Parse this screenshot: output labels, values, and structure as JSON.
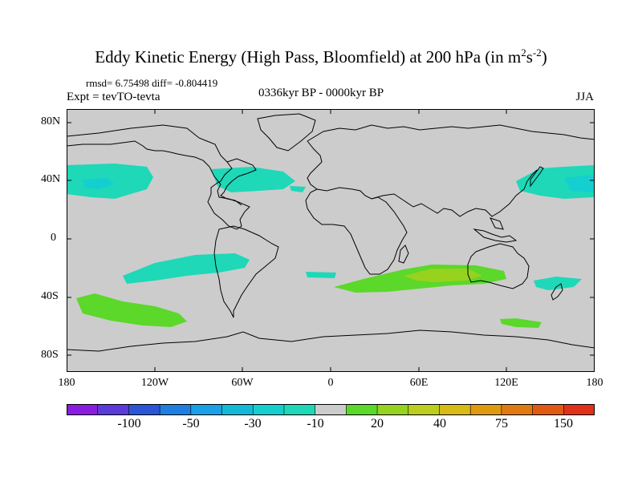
{
  "title": {
    "main": "Eddy Kinetic Energy (High Pass, Bloomfield) at 200 hPa (in m",
    "sup1": "2",
    "mid": "s",
    "sup2": "-2",
    "close": ")"
  },
  "stats": "rmsd= 6.75498 diff= -0.804419",
  "experiment": "Expt = tevTO-tevta",
  "period": "0336kyr BP - 0000kyr BP",
  "season": "JJA",
  "lat_ticks": [
    "80N",
    "40N",
    "0",
    "40S",
    "80S"
  ],
  "lon_ticks": [
    "180",
    "120W",
    "60W",
    "0",
    "60E",
    "120E",
    "180"
  ],
  "colorbar": {
    "labels": [
      "-100",
      "-50",
      "-30",
      "-10",
      "20",
      "40",
      "75",
      "150"
    ],
    "colors": [
      "#8a1ce0",
      "#5a3ad8",
      "#2a55d6",
      "#1e7fe0",
      "#1aa0e6",
      "#12bad8",
      "#14cfcf",
      "#1ed8b8",
      "#cccccc",
      "#5bd82a",
      "#96d21e",
      "#bccd1e",
      "#d8bb14",
      "#e09a10",
      "#e07a10",
      "#e05a14",
      "#e0321a"
    ]
  },
  "colors": {
    "map_bg": "#cccccc",
    "negative_anomaly": "#1ed8b8",
    "positive_anomaly_low": "#5bd82a",
    "positive_anomaly_mid": "#96d21e"
  }
}
